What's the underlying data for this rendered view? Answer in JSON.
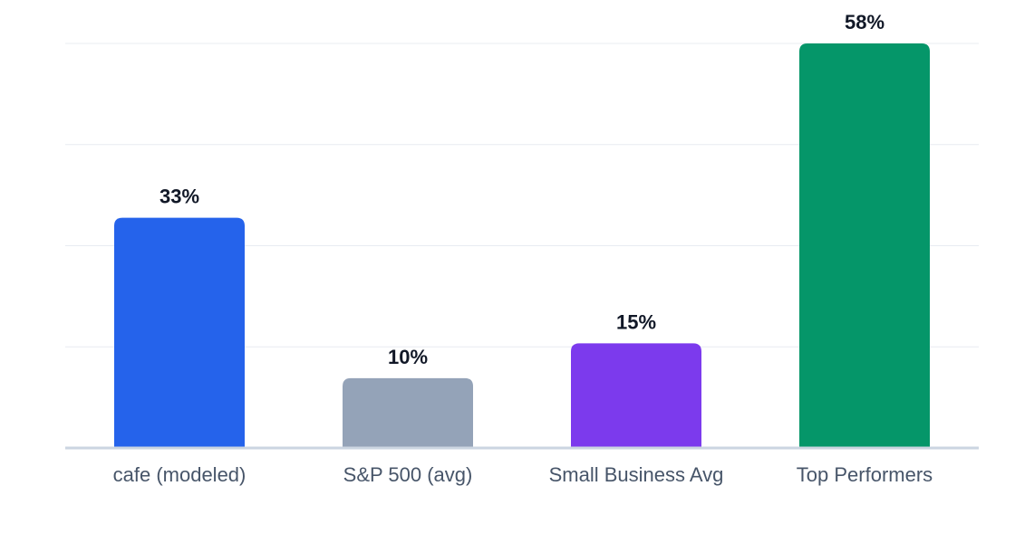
{
  "chart_data": {
    "type": "bar",
    "categories": [
      "cafe (modeled)",
      "S&P 500 (avg)",
      "Small Business Avg",
      "Top Performers"
    ],
    "values": [
      33,
      10,
      15,
      58
    ],
    "value_labels": [
      "33%",
      "10%",
      "15%",
      "58%"
    ],
    "colors": [
      "#2563eb",
      "#94a3b8",
      "#7c3aed",
      "#059669"
    ],
    "ylim": [
      0,
      58
    ],
    "grid": true,
    "title": "",
    "xlabel": "",
    "ylabel": ""
  }
}
